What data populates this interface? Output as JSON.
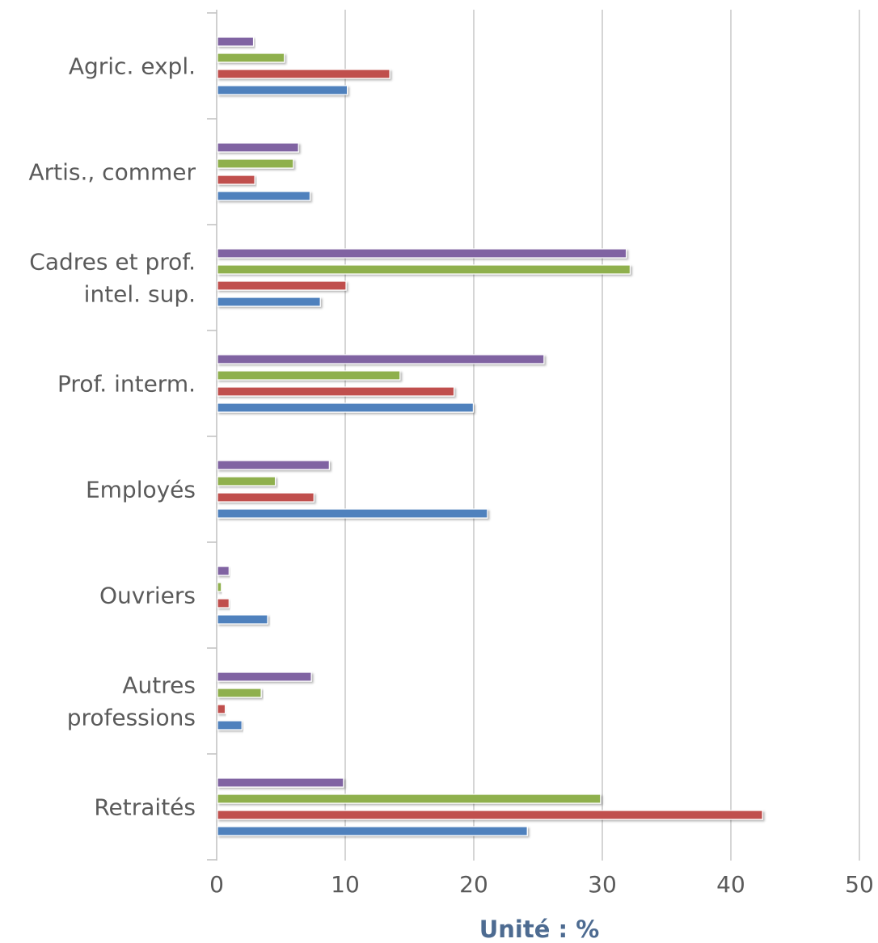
{
  "chart_data": {
    "type": "bar",
    "orientation": "horizontal",
    "title": "",
    "xlabel": "Unité : %",
    "ylabel": "",
    "xlim": [
      0,
      50
    ],
    "x_ticks": [
      0,
      10,
      20,
      30,
      40,
      50
    ],
    "grid": "vertical",
    "legend": "none",
    "categories": [
      [
        "Agric. expl."
      ],
      [
        "Artis., commer"
      ],
      [
        "Cadres et prof.",
        "intel. sup."
      ],
      [
        "Prof. interm."
      ],
      [
        "Employés"
      ],
      [
        "Ouvriers"
      ],
      [
        "Autres",
        "professions"
      ],
      [
        "Retraités"
      ]
    ],
    "series": [
      {
        "color": "#8064a2",
        "values": [
          2.8,
          6.3,
          31.8,
          25.4,
          8.7,
          0.9,
          7.3,
          9.8
        ]
      },
      {
        "color": "#8fb04e",
        "values": [
          5.2,
          5.9,
          32.1,
          14.2,
          4.5,
          0.3,
          3.4,
          29.8
        ]
      },
      {
        "color": "#c0504d",
        "values": [
          13.4,
          2.9,
          10.0,
          18.4,
          7.5,
          0.9,
          0.6,
          42.4
        ]
      },
      {
        "color": "#4f81bd",
        "values": [
          10.1,
          7.2,
          8.0,
          19.9,
          21.0,
          3.9,
          1.9,
          24.1
        ]
      }
    ]
  }
}
